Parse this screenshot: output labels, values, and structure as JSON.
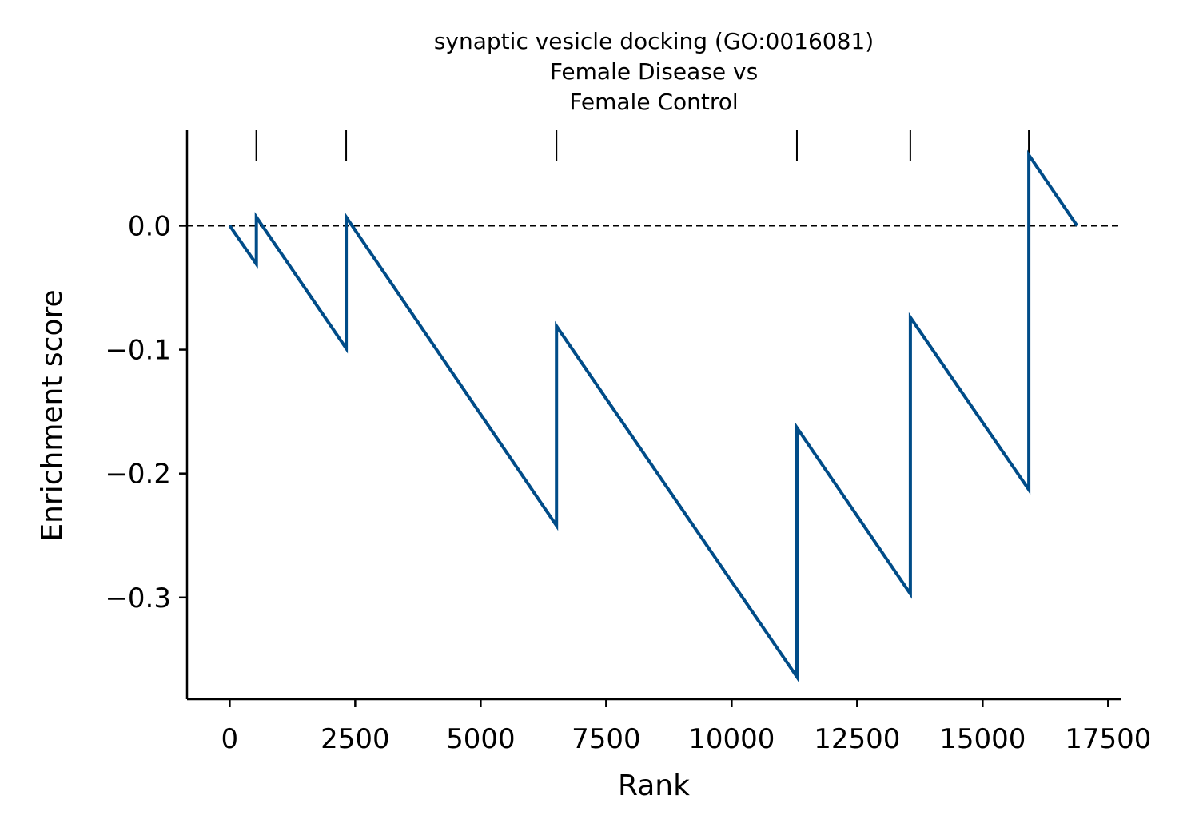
{
  "chart_data": {
    "type": "line",
    "title": [
      "synaptic vesicle docking (GO:0016081)",
      "Female Disease vs",
      "Female Control"
    ],
    "xlabel": "Rank",
    "ylabel": "Enrichment score",
    "xlim": [
      -850,
      17750
    ],
    "ylim": [
      -0.382,
      0.077
    ],
    "x_ticks": [
      0,
      2500,
      5000,
      7500,
      10000,
      12500,
      15000,
      17500
    ],
    "x_tick_labels": [
      "0",
      "2500",
      "5000",
      "7500",
      "10000",
      "12500",
      "15000",
      "17500"
    ],
    "y_ticks": [
      0.0,
      -0.1,
      -0.2,
      -0.3
    ],
    "y_tick_labels": [
      "0.0",
      "−0.1",
      "−0.2",
      "−0.3"
    ],
    "grid": false,
    "baseline": 0.0,
    "line_color": "#004c88",
    "hit_positions": [
      530,
      2320,
      6510,
      11300,
      13560,
      15920
    ],
    "series": [
      {
        "x": [
          0,
          530,
          530,
          2320,
          2320,
          6510,
          6510,
          11300,
          11300,
          13560,
          13560,
          15920,
          15920,
          16880
        ],
        "y": [
          0.0,
          -0.031,
          0.007,
          -0.099,
          0.007,
          -0.242,
          -0.081,
          -0.364,
          -0.163,
          -0.297,
          -0.074,
          -0.213,
          0.057,
          0.0
        ]
      }
    ]
  }
}
